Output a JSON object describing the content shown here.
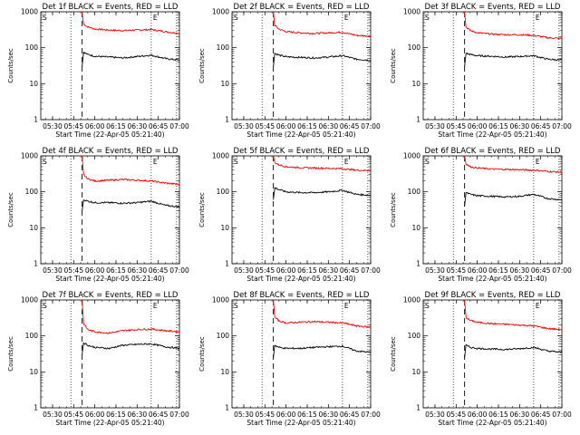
{
  "chart_data": [
    {
      "type": "line",
      "title": "Det 1f BLACK = Events, RED = LLD",
      "xlabel": "Start Time (22-Apr-05 05:21:40)",
      "ylabel": "Counts/sec",
      "yscale": "log",
      "ylim": [
        1,
        1000
      ],
      "xlim": [
        "05:21:40",
        "07:00"
      ],
      "x_ticks": [
        "05:30",
        "05:45",
        "06:00",
        "06:15",
        "06:30",
        "06:45",
        "07:00"
      ],
      "y_ticks": [
        "1",
        "10",
        "100",
        "1000"
      ],
      "markers": {
        "dotted_1": "05:43",
        "dashed": "05:51",
        "dotted_2": "06:40",
        "dotted_3": "06:58"
      },
      "flags": [
        "S",
        "E"
      ],
      "series": [
        {
          "color": "#ff0000",
          "x": [
            "05:51",
            "05:52",
            "05:55",
            "06:00",
            "06:10",
            "06:20",
            "06:30",
            "06:40",
            "06:50",
            "07:00"
          ],
          "values": [
            1000,
            450,
            380,
            330,
            310,
            300,
            310,
            320,
            280,
            250
          ]
        },
        {
          "color": "#000000",
          "x": [
            "05:51",
            "05:52",
            "05:55",
            "06:00",
            "06:10",
            "06:20",
            "06:30",
            "06:40",
            "06:50",
            "07:00"
          ],
          "values": [
            30,
            75,
            65,
            58,
            55,
            52,
            57,
            62,
            50,
            45
          ]
        }
      ]
    },
    {
      "type": "line",
      "title": "Det 2f BLACK = Events, RED = LLD",
      "xlabel": "Start Time (22-Apr-05 05:21:40)",
      "ylabel": "Counts/sec",
      "yscale": "log",
      "ylim": [
        1,
        1000
      ],
      "xlim": [
        "05:21:40",
        "07:00"
      ],
      "x_ticks": [
        "05:30",
        "05:45",
        "06:00",
        "06:15",
        "06:30",
        "06:45",
        "07:00"
      ],
      "y_ticks": [
        "1",
        "10",
        "100",
        "1000"
      ],
      "markers": {
        "dotted_1": "05:43",
        "dashed": "05:51",
        "dotted_2": "06:40",
        "dotted_3": "06:58"
      },
      "flags": [
        "S",
        "E"
      ],
      "series": [
        {
          "color": "#ff0000",
          "x": [
            "05:51",
            "05:52",
            "05:55",
            "06:00",
            "06:10",
            "06:20",
            "06:30",
            "06:40",
            "06:50",
            "07:00"
          ],
          "values": [
            1000,
            420,
            330,
            280,
            260,
            250,
            260,
            270,
            220,
            210
          ]
        },
        {
          "color": "#000000",
          "x": [
            "05:51",
            "05:52",
            "05:55",
            "06:00",
            "06:10",
            "06:20",
            "06:30",
            "06:40",
            "06:50",
            "07:00"
          ],
          "values": [
            30,
            70,
            62,
            56,
            54,
            52,
            55,
            60,
            48,
            45
          ]
        }
      ]
    },
    {
      "type": "line",
      "title": "Det 3f BLACK = Events, RED = LLD",
      "xlabel": "Start Time (22-Apr-05 05:21:40)",
      "ylabel": "Counts/sec",
      "yscale": "log",
      "ylim": [
        1,
        1000
      ],
      "xlim": [
        "05:21:40",
        "07:00"
      ],
      "x_ticks": [
        "05:30",
        "05:45",
        "06:00",
        "06:15",
        "06:30",
        "06:45",
        "07:00"
      ],
      "y_ticks": [
        "1",
        "10",
        "100",
        "1000"
      ],
      "markers": {
        "dotted_1": "05:43",
        "dashed": "05:51",
        "dotted_2": "06:40",
        "dotted_3": "06:58"
      },
      "flags": [
        "S",
        "E"
      ],
      "series": [
        {
          "color": "#ff0000",
          "x": [
            "05:51",
            "05:52",
            "05:55",
            "06:00",
            "06:10",
            "06:20",
            "06:30",
            "06:40",
            "06:50",
            "07:00"
          ],
          "values": [
            1000,
            380,
            300,
            260,
            240,
            230,
            230,
            220,
            190,
            180
          ]
        },
        {
          "color": "#000000",
          "x": [
            "05:51",
            "05:52",
            "05:55",
            "06:00",
            "06:10",
            "06:20",
            "06:30",
            "06:40",
            "06:50",
            "07:00"
          ],
          "values": [
            30,
            70,
            65,
            60,
            58,
            55,
            57,
            60,
            48,
            45
          ]
        }
      ]
    },
    {
      "type": "line",
      "title": "Det 4f BLACK = Events, RED = LLD",
      "xlabel": "Start Time (22-Apr-05 05:21:40)",
      "ylabel": "Counts/sec",
      "yscale": "log",
      "ylim": [
        1,
        1000
      ],
      "xlim": [
        "05:21:40",
        "07:00"
      ],
      "x_ticks": [
        "05:30",
        "05:45",
        "06:00",
        "06:15",
        "06:30",
        "06:45",
        "07:00"
      ],
      "y_ticks": [
        "1",
        "10",
        "100",
        "1000"
      ],
      "markers": {
        "dotted_1": "05:43",
        "dashed": "05:51",
        "dotted_2": "06:40",
        "dotted_3": "06:58"
      },
      "flags": [
        "S",
        "E"
      ],
      "series": [
        {
          "color": "#ff0000",
          "x": [
            "05:51",
            "05:52",
            "05:55",
            "06:00",
            "06:10",
            "06:20",
            "06:30",
            "06:40",
            "06:50",
            "07:00"
          ],
          "values": [
            1000,
            300,
            230,
            200,
            210,
            220,
            210,
            200,
            175,
            160
          ]
        },
        {
          "color": "#000000",
          "x": [
            "05:51",
            "05:52",
            "05:55",
            "06:00",
            "06:10",
            "06:20",
            "06:30",
            "06:40",
            "06:50",
            "07:00"
          ],
          "values": [
            30,
            60,
            55,
            50,
            50,
            48,
            50,
            55,
            42,
            38
          ]
        }
      ]
    },
    {
      "type": "line",
      "title": "Det 5f BLACK = Events, RED = LLD",
      "xlabel": "Start Time (22-Apr-05 05:21:40)",
      "ylabel": "Counts/sec",
      "yscale": "log",
      "ylim": [
        1,
        1000
      ],
      "xlim": [
        "05:21:40",
        "07:00"
      ],
      "x_ticks": [
        "05:30",
        "05:45",
        "06:00",
        "06:15",
        "06:30",
        "06:45",
        "07:00"
      ],
      "y_ticks": [
        "1",
        "10",
        "100",
        "1000"
      ],
      "markers": {
        "dotted_1": "05:43",
        "dashed": "05:51",
        "dotted_2": "06:40",
        "dotted_3": "06:58"
      },
      "flags": [
        "S",
        "E"
      ],
      "series": [
        {
          "color": "#ff0000",
          "x": [
            "05:51",
            "05:52",
            "05:55",
            "06:00",
            "06:10",
            "06:20",
            "06:30",
            "06:40",
            "06:50",
            "07:00"
          ],
          "values": [
            1000,
            650,
            560,
            500,
            470,
            460,
            450,
            440,
            400,
            390
          ]
        },
        {
          "color": "#000000",
          "x": [
            "05:51",
            "05:52",
            "05:55",
            "06:00",
            "06:10",
            "06:20",
            "06:30",
            "06:40",
            "06:50",
            "07:00"
          ],
          "values": [
            60,
            130,
            115,
            100,
            95,
            95,
            100,
            110,
            85,
            80
          ]
        }
      ]
    },
    {
      "type": "line",
      "title": "Det 6f BLACK = Events, RED = LLD",
      "xlabel": "Start Time (22-Apr-05 05:21:40)",
      "ylabel": "Counts/sec",
      "yscale": "log",
      "ylim": [
        1,
        1000
      ],
      "xlim": [
        "05:21:40",
        "07:00"
      ],
      "x_ticks": [
        "05:30",
        "05:45",
        "06:00",
        "06:15",
        "06:30",
        "06:45",
        "07:00"
      ],
      "y_ticks": [
        "1",
        "10",
        "100",
        "1000"
      ],
      "markers": {
        "dotted_1": "05:43",
        "dashed": "05:51",
        "dotted_2": "06:40",
        "dotted_3": "06:58"
      },
      "flags": [
        "S",
        "E"
      ],
      "series": [
        {
          "color": "#ff0000",
          "x": [
            "05:51",
            "05:52",
            "05:55",
            "06:00",
            "06:10",
            "06:20",
            "06:30",
            "06:40",
            "06:50",
            "07:00"
          ],
          "values": [
            1000,
            600,
            500,
            460,
            430,
            420,
            410,
            400,
            370,
            350
          ]
        },
        {
          "color": "#000000",
          "x": [
            "05:51",
            "05:52",
            "05:55",
            "06:00",
            "06:10",
            "06:20",
            "06:30",
            "06:40",
            "06:50",
            "07:00"
          ],
          "values": [
            40,
            95,
            85,
            78,
            75,
            72,
            75,
            85,
            65,
            60
          ]
        }
      ]
    },
    {
      "type": "line",
      "title": "Det 7f BLACK = Events, RED = LLD",
      "xlabel": "Start Time (22-Apr-05 05:21:40)",
      "ylabel": "Counts/sec",
      "yscale": "log",
      "ylim": [
        1,
        1000
      ],
      "xlim": [
        "05:21:40",
        "07:00"
      ],
      "x_ticks": [
        "05:30",
        "05:45",
        "06:00",
        "06:15",
        "06:30",
        "06:45",
        "07:00"
      ],
      "y_ticks": [
        "1",
        "10",
        "100",
        "1000"
      ],
      "markers": {
        "dotted_1": "05:43",
        "dashed": "05:51",
        "dotted_2": "06:40",
        "dotted_3": "06:58"
      },
      "flags": [
        "S",
        "E"
      ],
      "series": [
        {
          "color": "#ff0000",
          "x": [
            "05:51",
            "05:52",
            "05:55",
            "06:00",
            "06:10",
            "06:20",
            "06:30",
            "06:40",
            "06:50",
            "07:00"
          ],
          "values": [
            1000,
            220,
            150,
            130,
            120,
            140,
            150,
            155,
            140,
            130
          ]
        },
        {
          "color": "#000000",
          "x": [
            "05:51",
            "05:52",
            "05:55",
            "06:00",
            "06:10",
            "06:20",
            "06:30",
            "06:40",
            "06:50",
            "07:00"
          ],
          "values": [
            30,
            65,
            55,
            48,
            45,
            55,
            58,
            60,
            50,
            45
          ]
        }
      ]
    },
    {
      "type": "line",
      "title": "Det 8f BLACK = Events, RED = LLD",
      "xlabel": "Start Time (22-Apr-05 05:21:40)",
      "ylabel": "Counts/sec",
      "yscale": "log",
      "ylim": [
        1,
        1000
      ],
      "xlim": [
        "05:21:40",
        "07:00"
      ],
      "x_ticks": [
        "05:30",
        "05:45",
        "06:00",
        "06:15",
        "06:30",
        "06:45",
        "07:00"
      ],
      "y_ticks": [
        "1",
        "10",
        "100",
        "1000"
      ],
      "markers": {
        "dotted_1": "05:43",
        "dashed": "05:51",
        "dotted_2": "06:40",
        "dotted_3": "06:58"
      },
      "flags": [
        "S",
        "E"
      ],
      "series": [
        {
          "color": "#ff0000",
          "x": [
            "05:51",
            "05:52",
            "05:55",
            "06:00",
            "06:10",
            "06:20",
            "06:30",
            "06:40",
            "06:50",
            "07:00"
          ],
          "values": [
            1000,
            330,
            260,
            230,
            240,
            250,
            240,
            230,
            190,
            175
          ]
        },
        {
          "color": "#000000",
          "x": [
            "05:51",
            "05:52",
            "05:55",
            "06:00",
            "06:10",
            "06:20",
            "06:30",
            "06:40",
            "06:50",
            "07:00"
          ],
          "values": [
            25,
            55,
            48,
            45,
            45,
            48,
            50,
            52,
            38,
            35
          ]
        }
      ]
    },
    {
      "type": "line",
      "title": "Det 9f BLACK = Events, RED = LLD",
      "xlabel": "Start Time (22-Apr-05 05:21:40)",
      "ylabel": "Counts/sec",
      "yscale": "log",
      "ylim": [
        1,
        1000
      ],
      "xlim": [
        "05:21:40",
        "07:00"
      ],
      "x_ticks": [
        "05:30",
        "05:45",
        "06:00",
        "06:15",
        "06:30",
        "06:45",
        "07:00"
      ],
      "y_ticks": [
        "1",
        "10",
        "100",
        "1000"
      ],
      "markers": {
        "dotted_1": "05:43",
        "dashed": "05:51",
        "dotted_2": "06:40",
        "dotted_3": "06:58"
      },
      "flags": [
        "S",
        "E"
      ],
      "series": [
        {
          "color": "#ff0000",
          "x": [
            "05:51",
            "05:52",
            "05:55",
            "06:00",
            "06:10",
            "06:20",
            "06:30",
            "06:40",
            "06:50",
            "07:00"
          ],
          "values": [
            1000,
            330,
            270,
            240,
            220,
            210,
            200,
            190,
            160,
            150
          ]
        },
        {
          "color": "#000000",
          "x": [
            "05:51",
            "05:52",
            "05:55",
            "06:00",
            "06:10",
            "06:20",
            "06:30",
            "06:40",
            "06:50",
            "07:00"
          ],
          "values": [
            25,
            55,
            48,
            45,
            43,
            42,
            44,
            48,
            38,
            35
          ]
        }
      ]
    }
  ]
}
